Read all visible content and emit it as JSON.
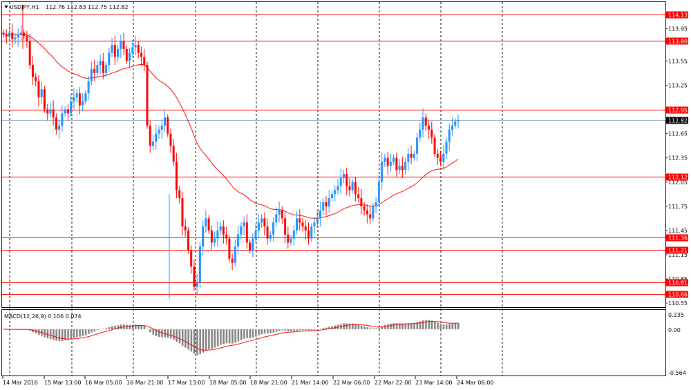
{
  "header": {
    "symbol_label": "USDJPY,H1",
    "ohlc_text": "112.76 112.83 112.75 112.82"
  },
  "macd": {
    "label": "MACD(12,26,9) 0.106 0.074",
    "scale_top": "0.235",
    "scale_zero": "0.00",
    "scale_bottom": "-0.564"
  },
  "colors": {
    "bull": "#1e90ff",
    "bear": "#ff0000",
    "hline": "#ff0000",
    "ma": "#ff0000",
    "current_price_line": "#a0b4c8",
    "grid": "#000000",
    "histogram": "#808080"
  },
  "price_axis": {
    "ticks": [
      "113.95",
      "113.55",
      "113.25",
      "112.65",
      "112.35",
      "112.05",
      "111.75",
      "111.45",
      "111.15",
      "110.85",
      "110.55"
    ],
    "tick_values": [
      113.95,
      113.55,
      113.25,
      112.65,
      112.35,
      112.05,
      111.75,
      111.45,
      111.15,
      110.85,
      110.55
    ]
  },
  "levels": [
    {
      "label": "114.13",
      "value": 114.13
    },
    {
      "label": "113.80",
      "value": 113.8
    },
    {
      "label": "112.95",
      "value": 112.95
    },
    {
      "label": "112.12",
      "value": 112.12
    },
    {
      "label": "111.36",
      "value": 111.36
    },
    {
      "label": "111.21",
      "value": 111.21
    },
    {
      "label": "110.81",
      "value": 110.81
    },
    {
      "label": "110.66",
      "value": 110.66
    }
  ],
  "current_price": {
    "label": "112.82",
    "value": 112.82
  },
  "time_axis": {
    "labels": [
      "14 Mar 2016",
      "15 Mar 13:00",
      "16 Mar 05:00",
      "16 Mar 21:00",
      "17 Mar 13:00",
      "18 Mar 05:00",
      "18 Mar 21:00",
      "21 Mar 14:00",
      "22 Mar 06:00",
      "22 Mar 22:00",
      "23 Mar 14:00",
      "24 Mar 06:00"
    ]
  },
  "chart_data": {
    "type": "candlestick",
    "symbol": "USDJPY",
    "timeframe": "H1",
    "price_range": [
      110.5,
      114.28
    ],
    "closes_approx": [
      113.88,
      113.85,
      113.9,
      113.82,
      113.84,
      113.88,
      113.9,
      113.86,
      113.8,
      113.5,
      113.35,
      113.3,
      113.1,
      113.2,
      112.95,
      112.9,
      112.95,
      112.85,
      112.7,
      112.75,
      112.9,
      112.95,
      112.9,
      113.05,
      113.1,
      113.15,
      113.0,
      113.05,
      113.15,
      113.3,
      113.45,
      113.4,
      113.5,
      113.55,
      113.4,
      113.5,
      113.65,
      113.75,
      113.6,
      113.7,
      113.8,
      113.7,
      113.55,
      113.65,
      113.72,
      113.75,
      113.65,
      113.6,
      113.5,
      112.75,
      112.5,
      112.55,
      112.65,
      112.7,
      112.75,
      112.85,
      112.65,
      112.5,
      112.3,
      111.95,
      111.85,
      111.5,
      111.45,
      111.2,
      111.0,
      110.75,
      110.8,
      111.25,
      111.5,
      111.6,
      111.45,
      111.3,
      111.35,
      111.45,
      111.5,
      111.4,
      111.35,
      111.1,
      111.05,
      111.25,
      111.4,
      111.5,
      111.55,
      111.3,
      111.2,
      111.35,
      111.45,
      111.55,
      111.6,
      111.5,
      111.35,
      111.4,
      111.55,
      111.65,
      111.7,
      111.6,
      111.4,
      111.3,
      111.35,
      111.45,
      111.6,
      111.55,
      111.5,
      111.45,
      111.35,
      111.5,
      111.55,
      111.6,
      111.7,
      111.8,
      111.75,
      111.85,
      111.9,
      111.95,
      112.0,
      112.1,
      112.15,
      112.0,
      111.95,
      112.05,
      111.9,
      111.85,
      111.75,
      111.7,
      111.65,
      111.6,
      111.75,
      111.8,
      112.05,
      112.3,
      112.35,
      112.25,
      112.3,
      112.35,
      112.2,
      112.25,
      112.2,
      112.3,
      112.4,
      112.35,
      112.4,
      112.6,
      112.7,
      112.85,
      112.75,
      112.7,
      112.6,
      112.4,
      112.35,
      112.3,
      112.4,
      112.55,
      112.7,
      112.75,
      112.8,
      112.82
    ]
  }
}
